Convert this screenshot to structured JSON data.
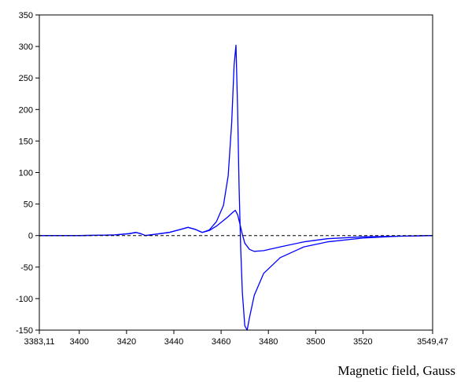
{
  "chart_data": {
    "type": "line",
    "title": "",
    "xlabel": "Magnetic field, Gauss",
    "ylabel": "",
    "xlim": [
      3383.11,
      3549.47
    ],
    "ylim": [
      -150,
      350
    ],
    "grid": false,
    "legend": "none",
    "x_ticks": [
      {
        "value": 3383.11,
        "label": "3383,11"
      },
      {
        "value": 3400,
        "label": "3400"
      },
      {
        "value": 3420,
        "label": "3420"
      },
      {
        "value": 3440,
        "label": "3440"
      },
      {
        "value": 3460,
        "label": "3460"
      },
      {
        "value": 3480,
        "label": "3480"
      },
      {
        "value": 3500,
        "label": "3500"
      },
      {
        "value": 3520,
        "label": "3520"
      },
      {
        "value": 3549.47,
        "label": "3549,47"
      }
    ],
    "y_ticks": [
      {
        "value": 350,
        "label": "350"
      },
      {
        "value": 300,
        "label": "300"
      },
      {
        "value": 250,
        "label": "250"
      },
      {
        "value": 200,
        "label": "200"
      },
      {
        "value": 150,
        "label": "150"
      },
      {
        "value": 100,
        "label": "100"
      },
      {
        "value": 50,
        "label": "50"
      },
      {
        "value": 0,
        "label": "0"
      },
      {
        "value": -50,
        "label": "-50"
      },
      {
        "value": -100,
        "label": "-100"
      },
      {
        "value": -150,
        "label": "-150"
      }
    ],
    "baseline": {
      "y": 0,
      "style": "dashed",
      "color": "#000000"
    },
    "series": [
      {
        "color": "#0000ff",
        "x": [
          3383.11,
          3400,
          3415,
          3421,
          3424,
          3426,
          3428,
          3432,
          3438,
          3443,
          3446,
          3449,
          3452,
          3455,
          3458,
          3461,
          3463,
          3464.5,
          3465.5,
          3466.3,
          3467,
          3467.6,
          3468.3,
          3469,
          3470,
          3471,
          3472,
          3474,
          3478,
          3485,
          3495,
          3505,
          3520,
          3535,
          3549.47
        ],
        "y": [
          0,
          0,
          1,
          3,
          5,
          3,
          0,
          2,
          5,
          10,
          13,
          10,
          5,
          9,
          22,
          48,
          95,
          180,
          270,
          302,
          200,
          80,
          -20,
          -90,
          -143,
          -150,
          -130,
          -95,
          -60,
          -35,
          -18,
          -10,
          -4,
          -1,
          0
        ]
      },
      {
        "color": "#0000ff",
        "x": [
          3383.11,
          3400,
          3415,
          3421,
          3424,
          3426,
          3428,
          3432,
          3438,
          3443,
          3446,
          3449,
          3452,
          3455,
          3458,
          3461,
          3463,
          3465,
          3466,
          3467,
          3468,
          3469,
          3470,
          3472,
          3474,
          3478,
          3485,
          3495,
          3505,
          3520,
          3535,
          3549.47
        ],
        "y": [
          0,
          0,
          1,
          3,
          5,
          3,
          0,
          2,
          5,
          10,
          13,
          10,
          5,
          8,
          15,
          24,
          30,
          37,
          40,
          33,
          18,
          2,
          -12,
          -22,
          -25,
          -24,
          -18,
          -10,
          -5,
          -2,
          -1,
          0
        ]
      }
    ]
  }
}
